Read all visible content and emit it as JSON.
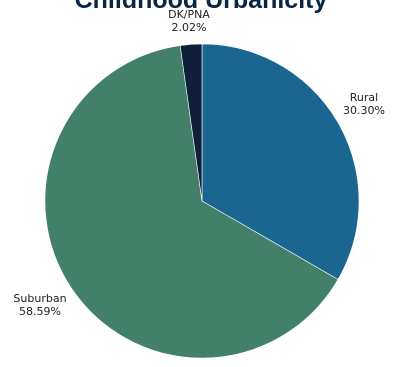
{
  "chart_data": {
    "type": "pie",
    "title": "Childhood Urbanicity",
    "slices": [
      {
        "label": "Rural",
        "value": 30.3,
        "value_label": "30.30%",
        "color": "#1a6690"
      },
      {
        "label": "Suburban",
        "value": 58.59,
        "value_label": "58.59%",
        "color": "#42806a"
      },
      {
        "label": "DK/PNA",
        "value": 2.02,
        "value_label": "2.02%",
        "color": "#0f1e3a"
      }
    ],
    "start_angle": "12 o'clock",
    "direction": "clockwise",
    "legend": "none"
  }
}
